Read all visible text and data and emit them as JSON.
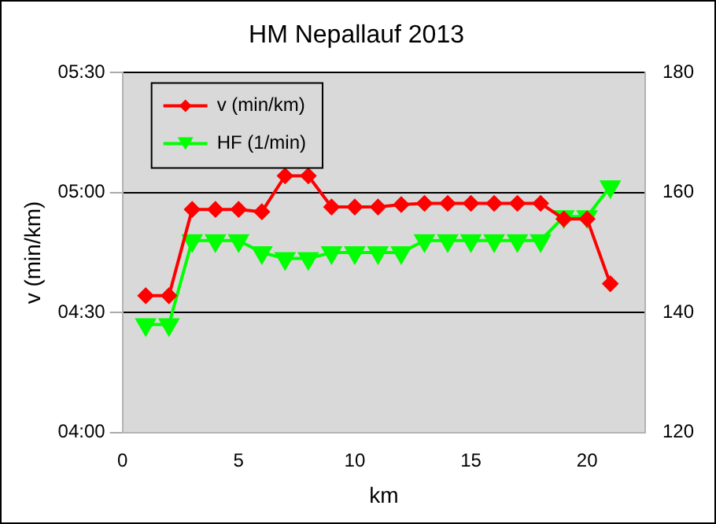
{
  "chart_data": {
    "type": "line",
    "title": "HM Nepallauf 2013",
    "xlabel": "km",
    "ylabel": "v (min/km)",
    "x": [
      1,
      2,
      3,
      4,
      5,
      6,
      7,
      8,
      9,
      10,
      11,
      12,
      13,
      14,
      15,
      16,
      17,
      18,
      19,
      20,
      21
    ],
    "xlim": [
      0,
      22.5
    ],
    "xticks": [
      0,
      5,
      10,
      15,
      20
    ],
    "ylim": [
      4,
      5.5
    ],
    "yticks": [
      {
        "value": 4,
        "label": "04:00"
      },
      {
        "value": 4.5,
        "label": "04:30"
      },
      {
        "value": 5,
        "label": "05:00"
      },
      {
        "value": 5.5,
        "label": "05:30"
      }
    ],
    "y2lim": [
      120,
      180
    ],
    "y2ticks": [
      120,
      140,
      160,
      180
    ],
    "grid": "y",
    "legend": "top left",
    "series": [
      {
        "name": "v (min/km)",
        "color": "#ff0000",
        "marker": "diamond",
        "values": [
          4.57,
          4.57,
          4.93,
          4.93,
          4.93,
          4.92,
          5.07,
          5.07,
          4.94,
          4.94,
          4.94,
          4.95,
          4.955,
          4.955,
          4.955,
          4.955,
          4.955,
          4.955,
          4.89,
          4.89,
          4.62
        ]
      },
      {
        "name": "HF (1/min)",
        "color": "#00ff00",
        "marker": "triangle",
        "axis": "y2",
        "values": [
          138,
          138,
          152,
          152,
          152,
          150,
          149,
          149,
          150,
          150,
          150,
          150,
          152,
          152,
          152,
          152,
          152,
          152,
          156,
          156,
          161
        ]
      }
    ]
  }
}
